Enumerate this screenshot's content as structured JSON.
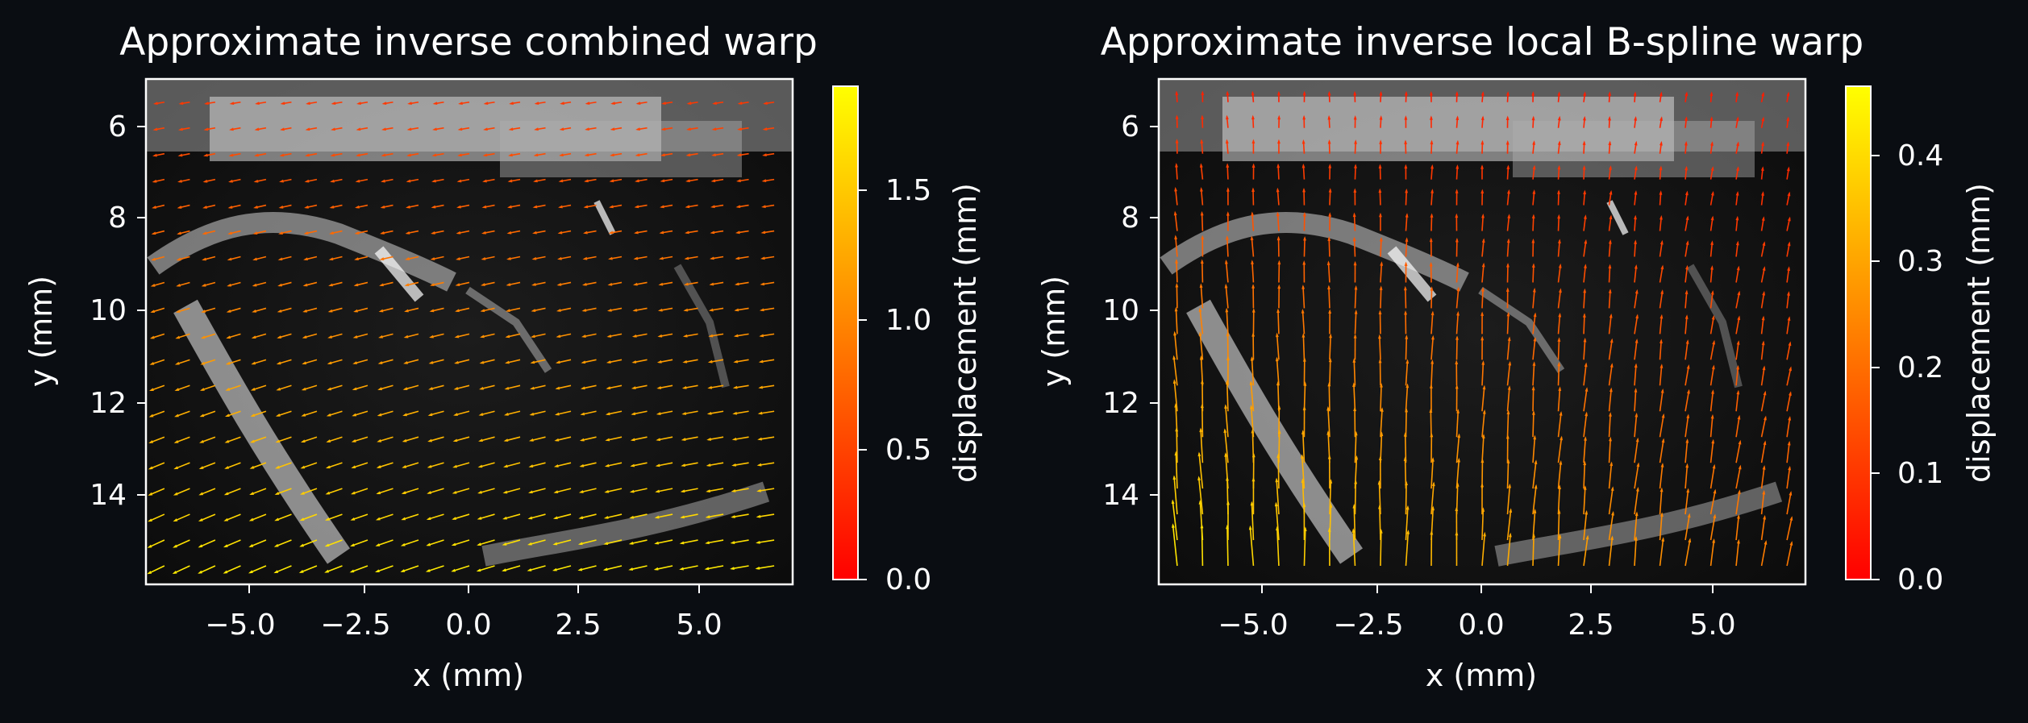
{
  "figure": {
    "background": "#0a0d12",
    "axis_color": "#ffffff"
  },
  "chart_data": [
    {
      "type": "heatmap",
      "overlay": "quiver",
      "title": "Approximate inverse combined warp",
      "xlabel": "x (mm)",
      "ylabel": "y (mm)",
      "xlim": [
        -7,
        7
      ],
      "ylim": [
        15.9,
        5.0
      ],
      "y_inverted": true,
      "xticks": [
        -5.0,
        -2.5,
        0.0,
        2.5,
        5.0
      ],
      "xtick_labels": [
        "−5.0",
        "−2.5",
        "0.0",
        "2.5",
        "5.0"
      ],
      "yticks": [
        6,
        8,
        10,
        12,
        14
      ],
      "ytick_labels": [
        "6",
        "8",
        "10",
        "12",
        "14"
      ],
      "background_image": "grayscale ultrasound B-mode image",
      "colorbar": {
        "label": "displacement (mm)",
        "colormap": "autumn",
        "range": [
          0.0,
          1.9
        ],
        "ticks": [
          0.0,
          0.5,
          1.0,
          1.5
        ],
        "tick_labels": [
          "0.0",
          "0.5",
          "1.0",
          "1.5"
        ]
      },
      "quiver_field": {
        "description": "mostly leftward/left-downward displacements increasing toward the bottom",
        "grid_x": [
          -6.6,
          6.6,
          25
        ],
        "grid_y": [
          5.5,
          15.5,
          19
        ],
        "magnitude_range": [
          0.2,
          1.9
        ]
      }
    },
    {
      "type": "heatmap",
      "overlay": "quiver",
      "title": "Approximate inverse local B-spline warp",
      "xlabel": "x (mm)",
      "ylabel": "y (mm)",
      "xlim": [
        -7,
        7
      ],
      "ylim": [
        15.9,
        5.0
      ],
      "y_inverted": true,
      "xticks": [
        -5.0,
        -2.5,
        0.0,
        2.5,
        5.0
      ],
      "xtick_labels": [
        "−5.0",
        "−2.5",
        "0.0",
        "2.5",
        "5.0"
      ],
      "yticks": [
        6,
        8,
        10,
        12,
        14
      ],
      "ytick_labels": [
        "6",
        "8",
        "10",
        "12",
        "14"
      ],
      "background_image": "grayscale ultrasound B-mode image",
      "colorbar": {
        "label": "displacement (mm)",
        "colormap": "autumn",
        "range": [
          0.0,
          0.465
        ],
        "ticks": [
          0.0,
          0.1,
          0.2,
          0.3,
          0.4
        ],
        "tick_labels": [
          "0.0",
          "0.1",
          "0.2",
          "0.3",
          "0.4"
        ]
      },
      "quiver_field": {
        "description": "mostly upward displacements, largest near the lower-left, smallest near the top",
        "grid_x": [
          -6.6,
          6.6,
          25
        ],
        "grid_y": [
          5.5,
          15.5,
          19
        ],
        "magnitude_range": [
          0.02,
          0.46
        ]
      }
    }
  ]
}
